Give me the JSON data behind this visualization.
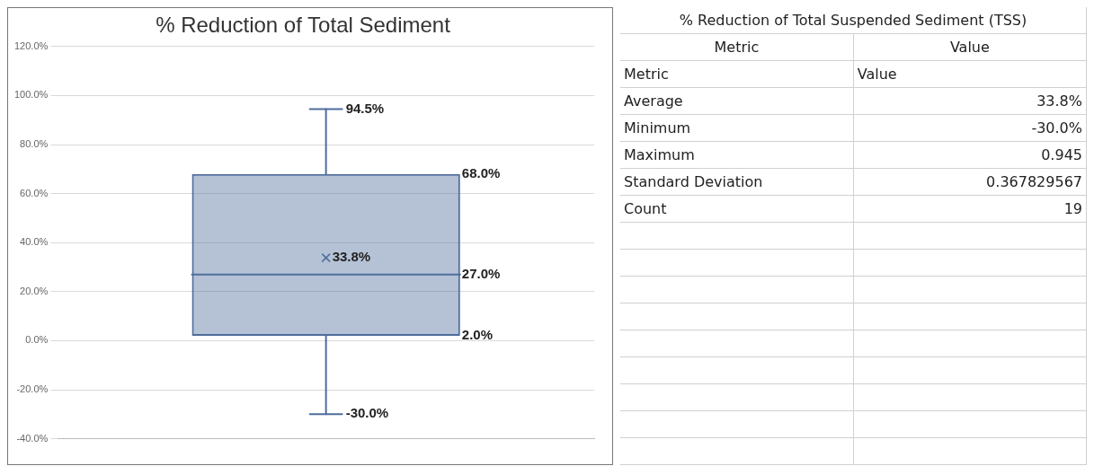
{
  "chart_data": [
    {
      "type": "box",
      "title": "% Reduction of Total Sediment",
      "categories": [
        null
      ],
      "boxes": [
        {
          "low": -30,
          "q1": 2,
          "median": 27,
          "q3": 68,
          "high": 94.5,
          "mean": 33.8
        }
      ],
      "color": "#4f6d9b",
      "ylim": [
        -40,
        120
      ],
      "yticks": [
        {
          "value": -40,
          "label": "-40.0%"
        },
        {
          "value": -20,
          "label": "-20.0%"
        },
        {
          "value": 0,
          "label": "0.0%"
        },
        {
          "value": 20,
          "label": "20.0%"
        },
        {
          "value": 40,
          "label": "40.0%"
        },
        {
          "value": 60,
          "label": "60.0%"
        },
        {
          "value": 80,
          "label": "80.0%"
        },
        {
          "value": 100,
          "label": "100.0%"
        },
        {
          "value": 120,
          "label": "120.0%"
        }
      ],
      "grid": "y",
      "annotations": [
        "94.5%",
        "68.0%",
        "33.8%",
        "27.0%",
        "2.0%",
        "-30.0%"
      ]
    },
    {
      "type": "other",
      "title": "% Reduction of Total Suspended Sediment (TSS)",
      "annotations": [
        "Metric",
        "Value",
        "Metric",
        "Value",
        "Average",
        "33.8%",
        "Minimum",
        "-30.0%",
        "Maximum",
        "0.945",
        "Standard Deviation",
        "0.367829567",
        "Count",
        "19"
      ]
    }
  ]
}
